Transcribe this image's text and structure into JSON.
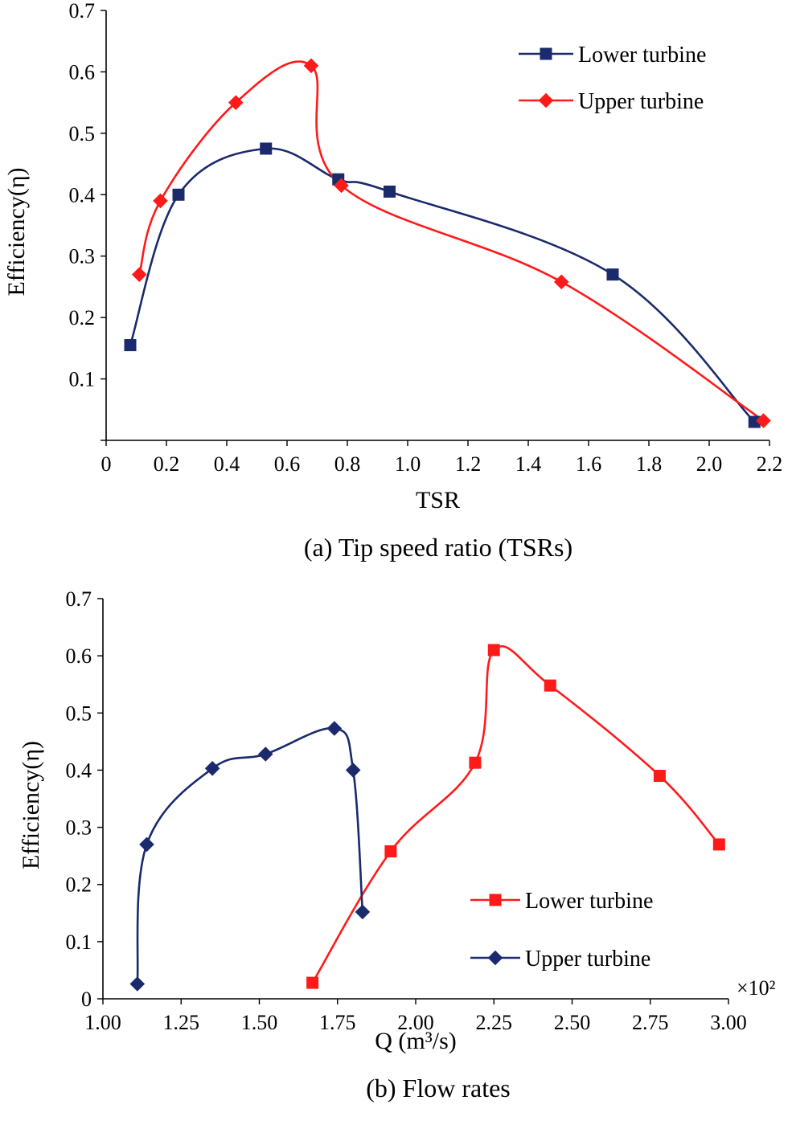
{
  "chart_data": [
    {
      "type": "line",
      "title": "",
      "caption": "(a) Tip speed ratio (TSRs)",
      "xlabel": "TSR",
      "ylabel": "Efficiency(η)",
      "xlim": [
        0,
        2.2
      ],
      "ylim": [
        0,
        0.7
      ],
      "x_ticks": [
        "0",
        "0.2",
        "0.4",
        "0.6",
        "0.8",
        "1.0",
        "1.2",
        "1.4",
        "1.6",
        "1.8",
        "2.0",
        "2.2"
      ],
      "y_ticks": [
        "0.1",
        "0.2",
        "0.3",
        "0.4",
        "0.5",
        "0.6",
        "0.7"
      ],
      "grid": false,
      "legend_position": "top-right",
      "series": [
        {
          "name": "Lower turbine",
          "color": "#1a2a6c",
          "marker": "square",
          "x": [
            0.08,
            0.24,
            0.53,
            0.77,
            0.94,
            1.68,
            2.15
          ],
          "y": [
            0.155,
            0.4,
            0.475,
            0.425,
            0.405,
            0.27,
            0.03
          ]
        },
        {
          "name": "Upper turbine",
          "color": "#ff1a1a",
          "marker": "diamond",
          "x": [
            0.11,
            0.18,
            0.43,
            0.68,
            0.78,
            1.51,
            2.18
          ],
          "y": [
            0.27,
            0.39,
            0.55,
            0.61,
            0.415,
            0.258,
            0.032
          ]
        }
      ]
    },
    {
      "type": "line",
      "title": "",
      "caption": "(b) Flow rates",
      "xlabel": "Q (m³/s)",
      "ylabel": "Efficiency(η)",
      "x_multiplier": "×10²",
      "xlim": [
        1.0,
        3.0
      ],
      "ylim": [
        0,
        0.7
      ],
      "x_ticks": [
        "1.00",
        "1.25",
        "1.50",
        "1.75",
        "2.00",
        "2.25",
        "2.50",
        "2.75",
        "3.00"
      ],
      "y_ticks": [
        "0",
        "0.1",
        "0.2",
        "0.3",
        "0.4",
        "0.5",
        "0.6",
        "0.7"
      ],
      "grid": false,
      "legend_position": "bottom-right",
      "series": [
        {
          "name": "Lower turbine",
          "color": "#ff1a1a",
          "marker": "square",
          "x": [
            1.67,
            1.92,
            2.19,
            2.25,
            2.43,
            2.78,
            2.97
          ],
          "y": [
            0.028,
            0.258,
            0.413,
            0.61,
            0.548,
            0.39,
            0.27
          ]
        },
        {
          "name": "Upper turbine",
          "color": "#1a2a6c",
          "marker": "diamond",
          "x": [
            1.11,
            1.14,
            1.35,
            1.52,
            1.74,
            1.8,
            1.83
          ],
          "y": [
            0.026,
            0.27,
            0.403,
            0.428,
            0.473,
            0.4,
            0.152
          ]
        }
      ]
    }
  ]
}
